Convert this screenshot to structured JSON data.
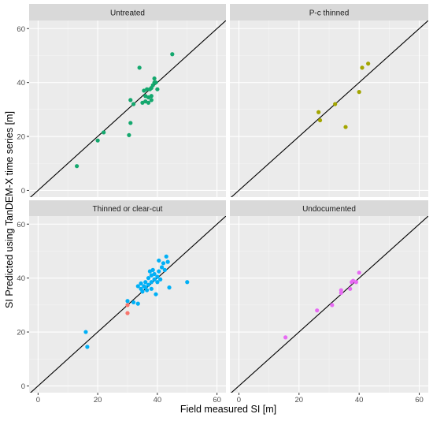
{
  "chart_data": {
    "type": "scatter",
    "layout": "facet-grid-2x2",
    "xlabel": "Field measured SI [m]",
    "ylabel": "SI Predicted using TanDEM-X time series [m]",
    "xlim": [
      -3,
      63
    ],
    "ylim": [
      -2.5,
      63
    ],
    "x_ticks": [
      0,
      20,
      40,
      60
    ],
    "y_ticks": [
      0,
      20,
      40,
      60
    ],
    "grid": true,
    "reference_line": {
      "type": "identity",
      "slope": 1,
      "intercept": 0,
      "color": "#000000"
    },
    "colors": {
      "panel_background": "#ebebeb",
      "strip_background": "#d9d9d9",
      "grid_major": "#ffffff",
      "grid_minor": "#f5f5f5",
      "green": "#14a86e",
      "olive": "#a3a500",
      "blue": "#00b0f6",
      "red": "#f8766d",
      "pink": "#e76bf3"
    },
    "facets": [
      {
        "title": "Untreated",
        "points": [
          {
            "x": 13,
            "y": 9,
            "c": "green"
          },
          {
            "x": 20,
            "y": 18.5,
            "c": "green"
          },
          {
            "x": 22,
            "y": 21.5,
            "c": "green"
          },
          {
            "x": 30.5,
            "y": 20.5,
            "c": "green"
          },
          {
            "x": 31,
            "y": 25,
            "c": "green"
          },
          {
            "x": 31,
            "y": 33.5,
            "c": "green"
          },
          {
            "x": 32,
            "y": 32,
            "c": "green"
          },
          {
            "x": 34,
            "y": 45.5,
            "c": "green"
          },
          {
            "x": 35,
            "y": 32.5,
            "c": "green"
          },
          {
            "x": 35.5,
            "y": 37,
            "c": "green"
          },
          {
            "x": 36,
            "y": 33,
            "c": "green"
          },
          {
            "x": 36,
            "y": 35,
            "c": "green"
          },
          {
            "x": 36.5,
            "y": 37.5,
            "c": "green"
          },
          {
            "x": 37,
            "y": 32.5,
            "c": "green"
          },
          {
            "x": 37,
            "y": 34.5,
            "c": "green"
          },
          {
            "x": 37.5,
            "y": 37.5,
            "c": "green"
          },
          {
            "x": 38,
            "y": 33.5,
            "c": "green"
          },
          {
            "x": 38,
            "y": 35,
            "c": "green"
          },
          {
            "x": 38,
            "y": 38,
            "c": "green"
          },
          {
            "x": 38.5,
            "y": 39,
            "c": "green"
          },
          {
            "x": 39,
            "y": 40,
            "c": "green"
          },
          {
            "x": 39,
            "y": 41.5,
            "c": "green"
          },
          {
            "x": 39.5,
            "y": 40,
            "c": "green"
          },
          {
            "x": 40,
            "y": 37.5,
            "c": "green"
          },
          {
            "x": 45,
            "y": 50.5,
            "c": "green"
          }
        ]
      },
      {
        "title": "P-c thinned",
        "points": [
          {
            "x": 26.5,
            "y": 29,
            "c": "olive"
          },
          {
            "x": 27,
            "y": 26,
            "c": "olive"
          },
          {
            "x": 32,
            "y": 32,
            "c": "olive"
          },
          {
            "x": 35.5,
            "y": 23.5,
            "c": "olive"
          },
          {
            "x": 40,
            "y": 36.5,
            "c": "olive"
          },
          {
            "x": 41,
            "y": 45.5,
            "c": "olive"
          },
          {
            "x": 43,
            "y": 47,
            "c": "olive"
          }
        ]
      },
      {
        "title": "Thinned or clear-cut",
        "points": [
          {
            "x": 16,
            "y": 20,
            "c": "blue"
          },
          {
            "x": 16.5,
            "y": 14.5,
            "c": "blue"
          },
          {
            "x": 30,
            "y": 27,
            "c": "red"
          },
          {
            "x": 30,
            "y": 30,
            "c": "red"
          },
          {
            "x": 30,
            "y": 31.5,
            "c": "blue"
          },
          {
            "x": 32,
            "y": 31,
            "c": "blue"
          },
          {
            "x": 33.5,
            "y": 30.5,
            "c": "blue"
          },
          {
            "x": 33.5,
            "y": 37,
            "c": "blue"
          },
          {
            "x": 34.5,
            "y": 36,
            "c": "blue"
          },
          {
            "x": 34.5,
            "y": 38,
            "c": "blue"
          },
          {
            "x": 35,
            "y": 35,
            "c": "blue"
          },
          {
            "x": 35.5,
            "y": 37,
            "c": "blue"
          },
          {
            "x": 36,
            "y": 36.5,
            "c": "blue"
          },
          {
            "x": 36,
            "y": 38.5,
            "c": "blue"
          },
          {
            "x": 36.5,
            "y": 35.5,
            "c": "blue"
          },
          {
            "x": 37,
            "y": 37.5,
            "c": "blue"
          },
          {
            "x": 37,
            "y": 40,
            "c": "blue"
          },
          {
            "x": 37.5,
            "y": 42.5,
            "c": "blue"
          },
          {
            "x": 38,
            "y": 36,
            "c": "blue"
          },
          {
            "x": 38,
            "y": 38.5,
            "c": "blue"
          },
          {
            "x": 38,
            "y": 41,
            "c": "blue"
          },
          {
            "x": 38.5,
            "y": 43,
            "c": "blue"
          },
          {
            "x": 39,
            "y": 39.5,
            "c": "blue"
          },
          {
            "x": 39,
            "y": 41.5,
            "c": "blue"
          },
          {
            "x": 39.5,
            "y": 34,
            "c": "blue"
          },
          {
            "x": 40,
            "y": 38.5,
            "c": "blue"
          },
          {
            "x": 40,
            "y": 40.5,
            "c": "blue"
          },
          {
            "x": 40.5,
            "y": 42.5,
            "c": "blue"
          },
          {
            "x": 40.5,
            "y": 46.5,
            "c": "blue"
          },
          {
            "x": 41,
            "y": 39.5,
            "c": "blue"
          },
          {
            "x": 41.5,
            "y": 44,
            "c": "blue"
          },
          {
            "x": 42,
            "y": 45.5,
            "c": "blue"
          },
          {
            "x": 42.5,
            "y": 43,
            "c": "blue"
          },
          {
            "x": 43,
            "y": 48,
            "c": "blue"
          },
          {
            "x": 43.5,
            "y": 46,
            "c": "blue"
          },
          {
            "x": 44,
            "y": 36.5,
            "c": "blue"
          },
          {
            "x": 50,
            "y": 38.5,
            "c": "blue"
          }
        ]
      },
      {
        "title": "Undocumented",
        "points": [
          {
            "x": 15.5,
            "y": 18,
            "c": "pink"
          },
          {
            "x": 26,
            "y": 28,
            "c": "pink"
          },
          {
            "x": 31,
            "y": 30,
            "c": "pink"
          },
          {
            "x": 34,
            "y": 34.5,
            "c": "pink"
          },
          {
            "x": 34,
            "y": 35.5,
            "c": "pink"
          },
          {
            "x": 37,
            "y": 36,
            "c": "pink"
          },
          {
            "x": 37.5,
            "y": 38.5,
            "c": "pink"
          },
          {
            "x": 38,
            "y": 39,
            "c": "pink"
          },
          {
            "x": 39,
            "y": 38.5,
            "c": "pink"
          },
          {
            "x": 40,
            "y": 42,
            "c": "pink"
          }
        ]
      }
    ]
  }
}
